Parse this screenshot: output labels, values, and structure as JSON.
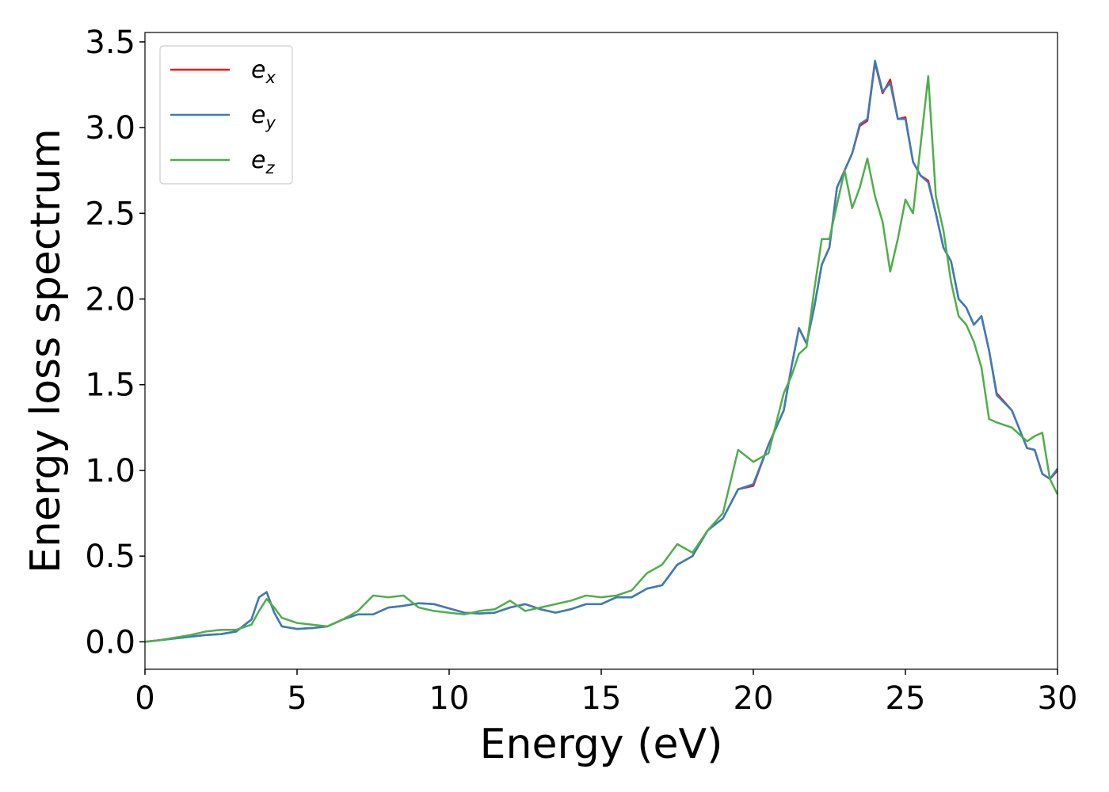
{
  "chart_data": {
    "type": "line",
    "xlabel": "Energy (eV)",
    "ylabel": "Energy loss spectrum",
    "x": [
      0,
      0.5,
      1,
      1.5,
      2,
      2.5,
      3,
      3.5,
      3.75,
      4,
      4.25,
      4.5,
      5,
      5.5,
      6,
      6.5,
      7,
      7.5,
      8,
      8.5,
      9,
      9.5,
      10,
      10.5,
      11,
      11.5,
      12,
      12.5,
      13,
      13.5,
      14,
      14.5,
      15,
      15.5,
      16,
      16.5,
      17,
      17.5,
      18,
      18.5,
      19,
      19.5,
      20,
      20.5,
      21,
      21.25,
      21.5,
      21.75,
      22,
      22.25,
      22.5,
      22.75,
      23,
      23.25,
      23.5,
      23.75,
      24,
      24.25,
      24.5,
      24.75,
      25,
      25.25,
      25.5,
      25.75,
      26,
      26.25,
      26.5,
      26.75,
      27,
      27.25,
      27.5,
      27.75,
      28,
      28.5,
      29,
      29.25,
      29.5,
      29.75,
      30
    ],
    "series": [
      {
        "name": "ex",
        "color": "#e41a1c",
        "values": [
          0,
          0.01,
          0.02,
          0.03,
          0.04,
          0.045,
          0.06,
          0.13,
          0.26,
          0.29,
          0.17,
          0.09,
          0.075,
          0.08,
          0.09,
          0.13,
          0.16,
          0.16,
          0.2,
          0.21,
          0.225,
          0.22,
          0.195,
          0.17,
          0.165,
          0.17,
          0.2,
          0.22,
          0.19,
          0.17,
          0.19,
          0.22,
          0.22,
          0.26,
          0.26,
          0.31,
          0.33,
          0.45,
          0.5,
          0.65,
          0.72,
          0.89,
          0.91,
          1.15,
          1.35,
          1.6,
          1.83,
          1.74,
          1.95,
          2.2,
          2.3,
          2.65,
          2.75,
          2.85,
          3.01,
          3.04,
          3.38,
          3.2,
          3.28,
          3.05,
          3.06,
          2.8,
          2.72,
          2.69,
          2.5,
          2.3,
          2.22,
          2.0,
          1.95,
          1.85,
          1.9,
          1.7,
          1.45,
          1.35,
          1.13,
          1.12,
          0.98,
          0.95,
          1.0
        ]
      },
      {
        "name": "ey",
        "color": "#377eb8",
        "values": [
          0,
          0.01,
          0.02,
          0.03,
          0.04,
          0.045,
          0.06,
          0.13,
          0.26,
          0.29,
          0.17,
          0.09,
          0.075,
          0.08,
          0.09,
          0.13,
          0.16,
          0.16,
          0.2,
          0.21,
          0.225,
          0.22,
          0.195,
          0.17,
          0.165,
          0.17,
          0.2,
          0.22,
          0.19,
          0.17,
          0.19,
          0.22,
          0.22,
          0.26,
          0.26,
          0.31,
          0.33,
          0.45,
          0.5,
          0.65,
          0.72,
          0.89,
          0.92,
          1.15,
          1.35,
          1.6,
          1.83,
          1.74,
          1.95,
          2.2,
          2.3,
          2.65,
          2.75,
          2.85,
          3.02,
          3.05,
          3.39,
          3.21,
          3.26,
          3.05,
          3.05,
          2.8,
          2.72,
          2.68,
          2.5,
          2.3,
          2.22,
          2.0,
          1.95,
          1.85,
          1.9,
          1.7,
          1.44,
          1.35,
          1.13,
          1.12,
          0.98,
          0.95,
          1.01
        ]
      },
      {
        "name": "ez",
        "color": "#4daf4a",
        "values": [
          0,
          0.01,
          0.025,
          0.04,
          0.06,
          0.07,
          0.07,
          0.1,
          0.18,
          0.25,
          0.2,
          0.14,
          0.11,
          0.1,
          0.09,
          0.13,
          0.18,
          0.27,
          0.26,
          0.27,
          0.2,
          0.18,
          0.17,
          0.16,
          0.18,
          0.19,
          0.24,
          0.18,
          0.2,
          0.22,
          0.24,
          0.27,
          0.26,
          0.27,
          0.3,
          0.4,
          0.45,
          0.57,
          0.52,
          0.65,
          0.75,
          1.12,
          1.05,
          1.1,
          1.45,
          1.55,
          1.68,
          1.72,
          2.05,
          2.35,
          2.35,
          2.55,
          2.75,
          2.53,
          2.65,
          2.82,
          2.6,
          2.45,
          2.16,
          2.35,
          2.58,
          2.5,
          2.9,
          3.3,
          2.6,
          2.4,
          2.1,
          1.9,
          1.85,
          1.75,
          1.6,
          1.3,
          1.28,
          1.25,
          1.17,
          1.2,
          1.22,
          0.95,
          0.86
        ]
      }
    ],
    "xlim": [
      0,
      30
    ],
    "ylim": [
      -0.16,
      3.555
    ],
    "xticks": [
      0,
      5,
      10,
      15,
      20,
      25,
      30
    ],
    "yticks": [
      {
        "value": 0,
        "label": "0.0"
      },
      0.5,
      {
        "value": 1,
        "label": "1.0"
      },
      1.5,
      {
        "value": 2,
        "label": "2.0"
      },
      2.5,
      {
        "value": 3,
        "label": "3.0"
      },
      3.5
    ],
    "legend": "upper left"
  }
}
